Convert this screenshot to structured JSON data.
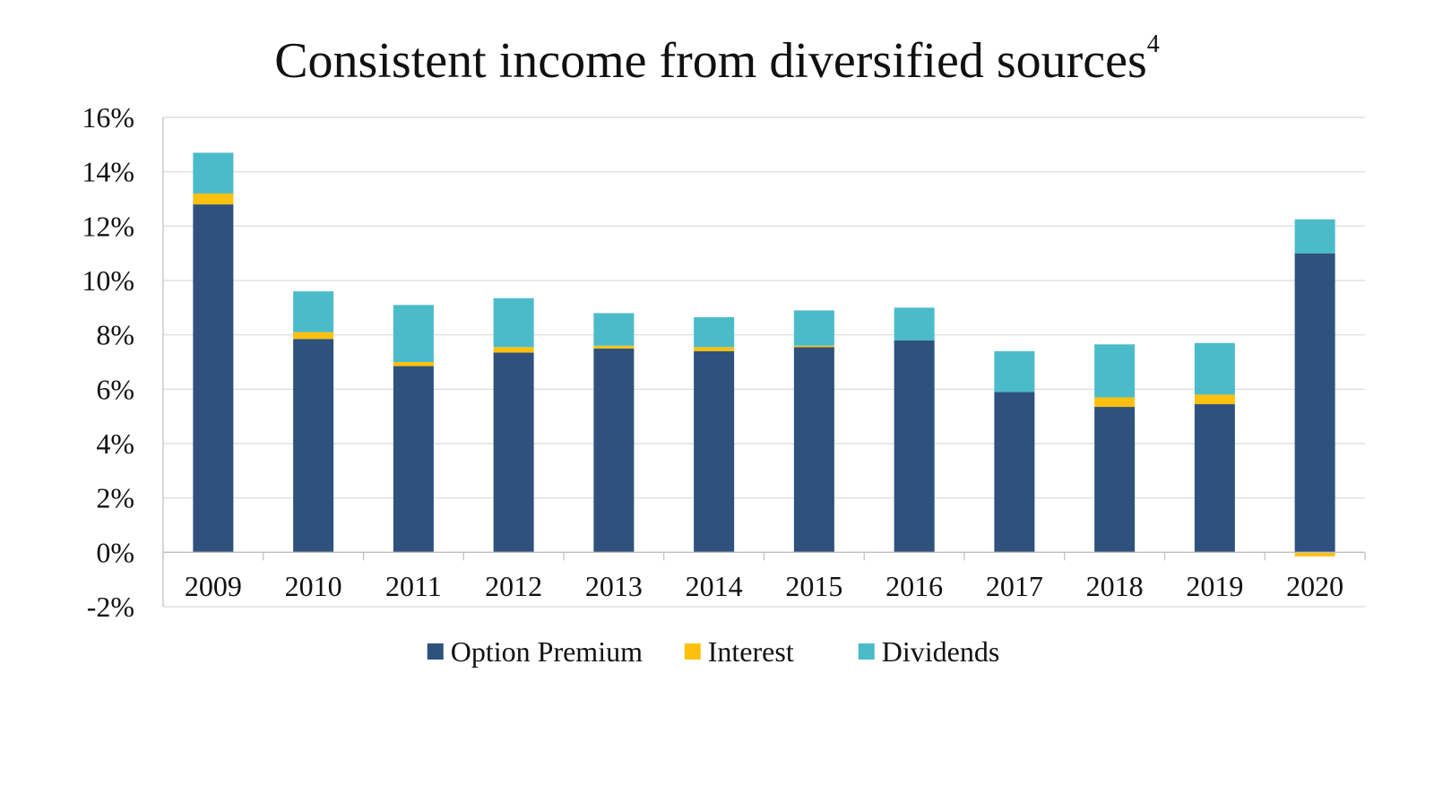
{
  "chart_data": {
    "type": "bar",
    "stacked": true,
    "title": "Consistent income from diversified sources",
    "title_superscript": "4",
    "xlabel": "",
    "ylabel": "",
    "categories": [
      "2009",
      "2010",
      "2011",
      "2012",
      "2013",
      "2014",
      "2015",
      "2016",
      "2017",
      "2018",
      "2019",
      "2020"
    ],
    "series": [
      {
        "name": "Option Premium",
        "color": "#2e527d",
        "values": [
          12.8,
          7.85,
          6.85,
          7.35,
          7.5,
          7.4,
          7.55,
          7.8,
          5.9,
          5.35,
          5.45,
          11.0
        ]
      },
      {
        "name": "Interest",
        "color": "#fdc00f",
        "values": [
          0.4,
          0.25,
          0.15,
          0.2,
          0.1,
          0.15,
          0.05,
          0.0,
          0.0,
          0.35,
          0.35,
          -0.15
        ]
      },
      {
        "name": "Dividends",
        "color": "#4bbbca",
        "values": [
          1.5,
          1.5,
          2.1,
          1.8,
          1.2,
          1.1,
          1.3,
          1.2,
          1.5,
          1.95,
          1.9,
          1.25
        ]
      }
    ],
    "ylim": [
      -2,
      16
    ],
    "yticks": [
      16,
      14,
      12,
      10,
      8,
      6,
      4,
      2,
      0,
      -2
    ],
    "ytick_labels": [
      "16%",
      "14%",
      "12%",
      "10%",
      "8%",
      "6%",
      "4%",
      "2%",
      "0%",
      "-2%"
    ],
    "grid": true,
    "legend_position": "bottom-center"
  }
}
